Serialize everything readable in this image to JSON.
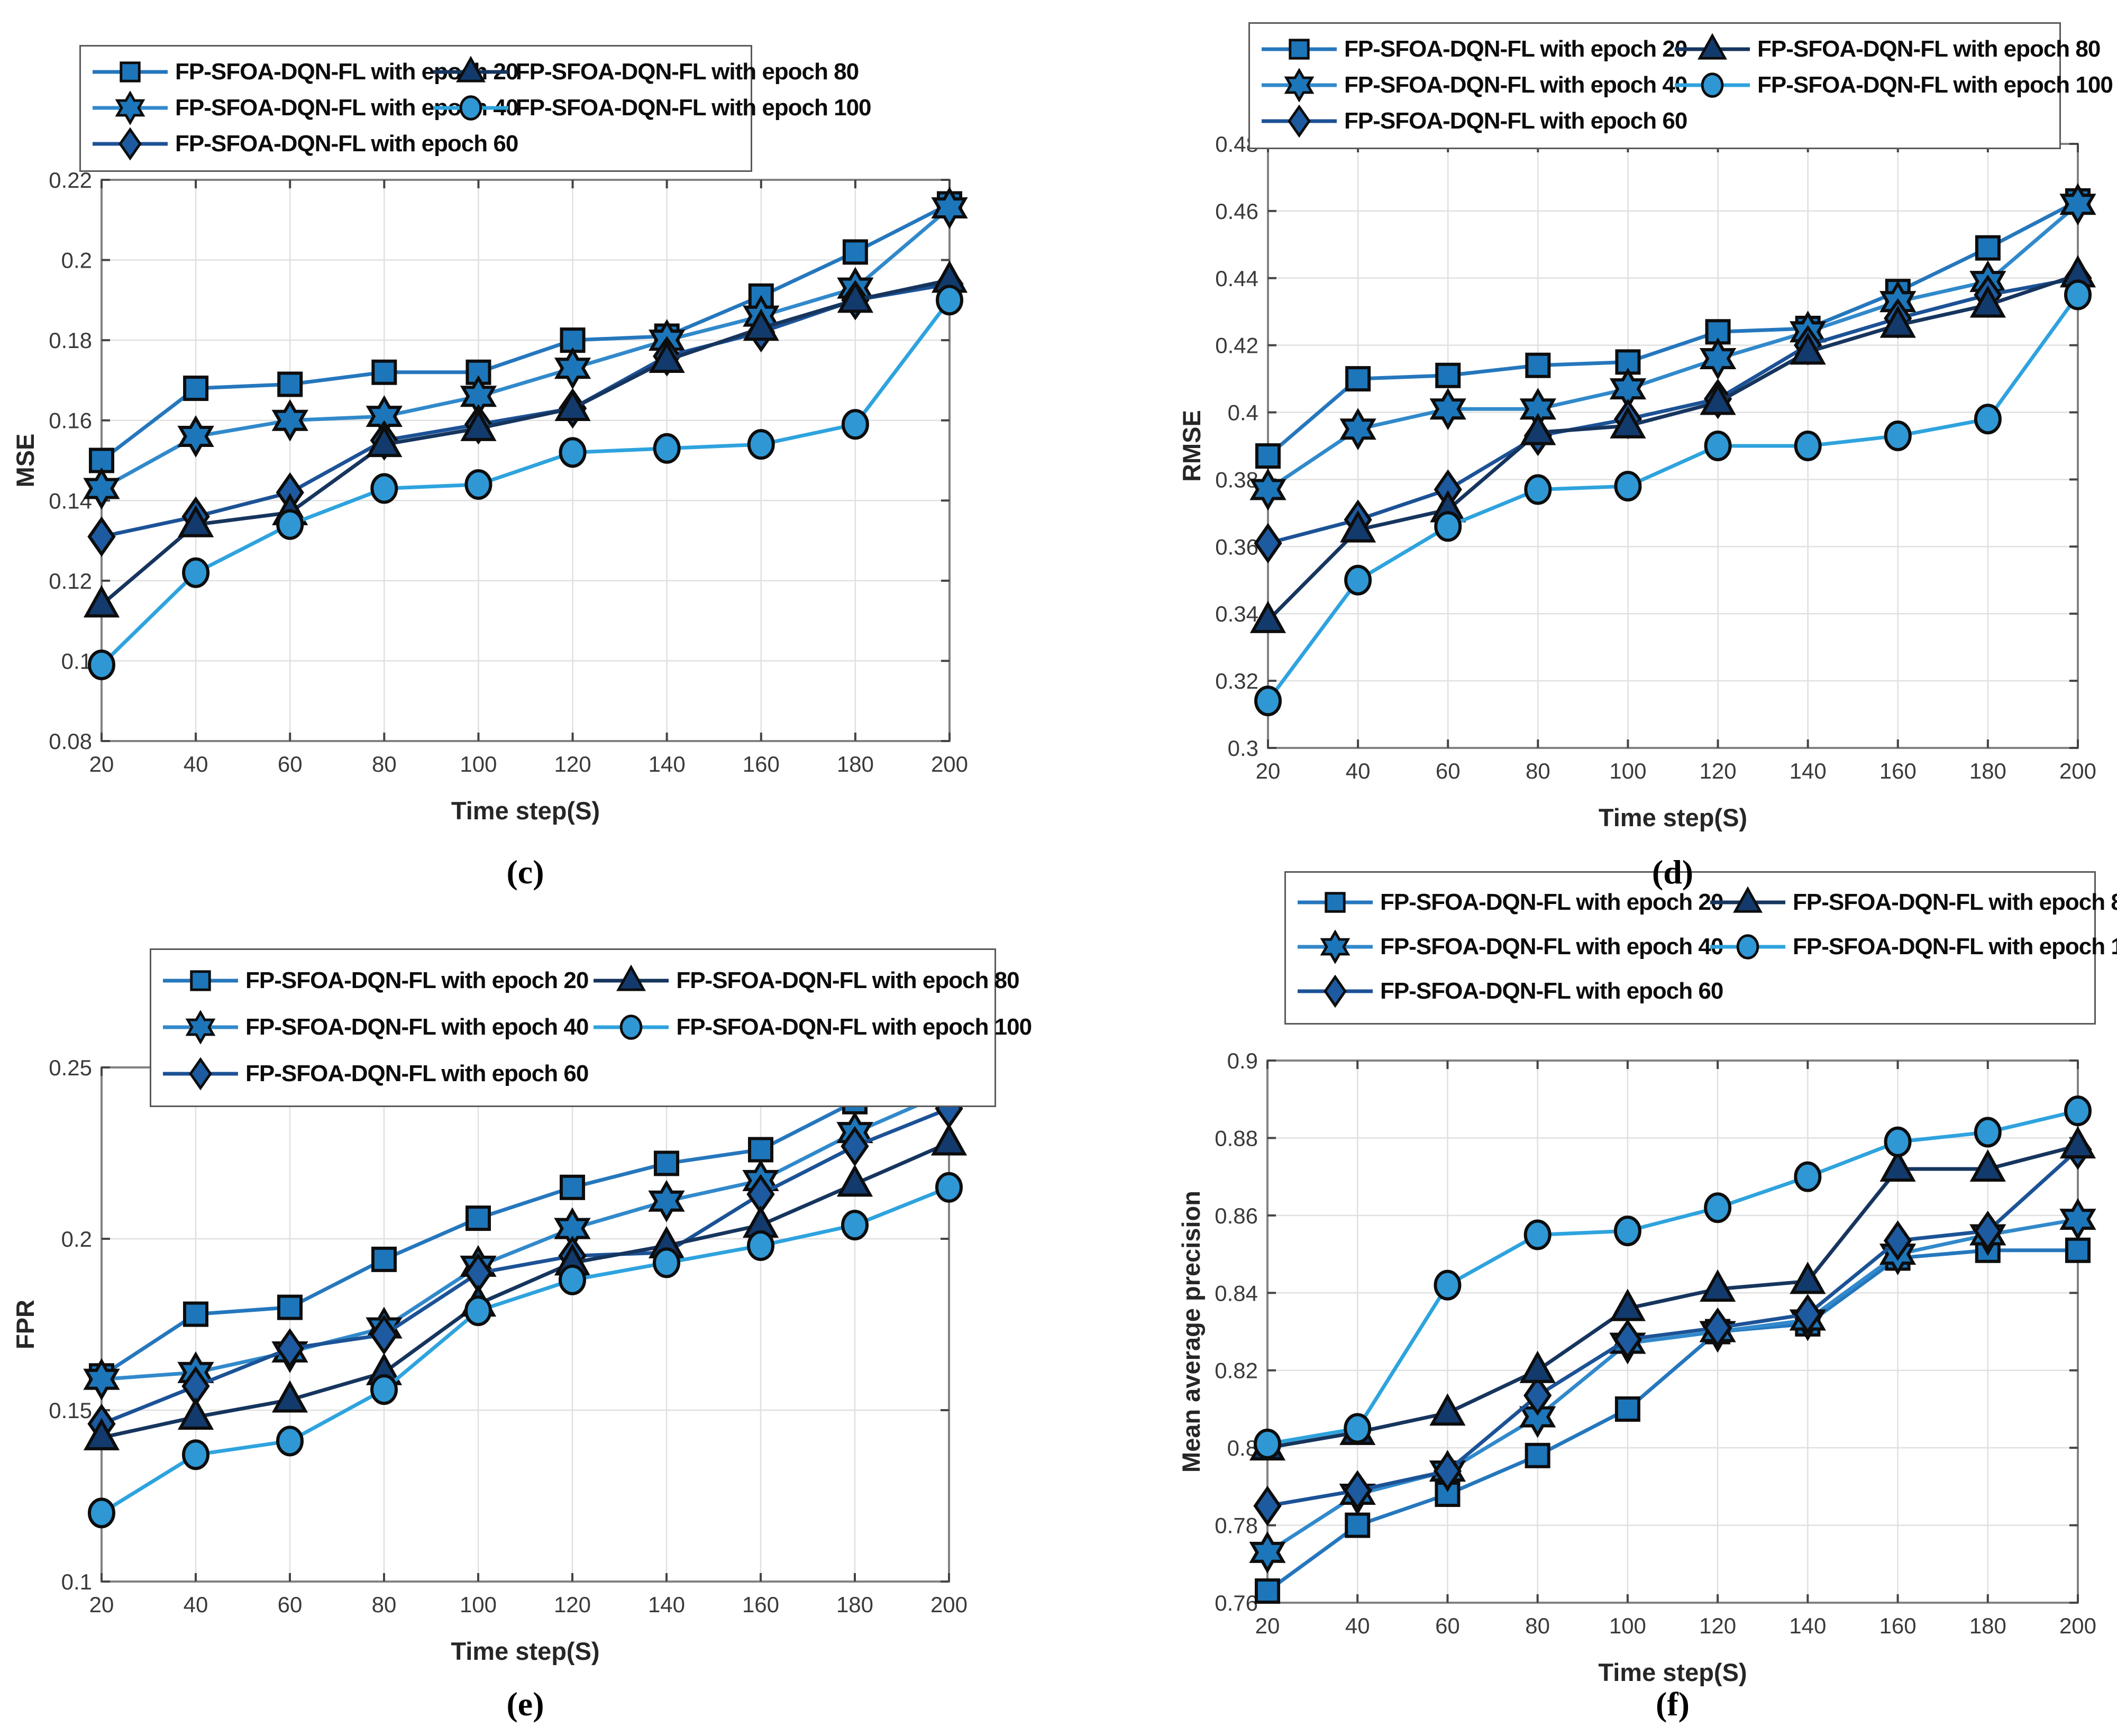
{
  "figure": {
    "series_labels": [
      "FP-SFOA-DQN-FL with epoch 20",
      "FP-SFOA-DQN-FL with epoch 40",
      "FP-SFOA-DQN-FL with epoch 60",
      "FP-SFOA-DQN-FL with epoch 80",
      "FP-SFOA-DQN-FL with epoch 100"
    ],
    "series_markers": [
      "square",
      "hexagram",
      "diamond",
      "triangle",
      "circle"
    ],
    "series_line_colors": [
      "#2577bd",
      "#3189cb",
      "#1c5296",
      "#16355e",
      "#2ea3de"
    ],
    "series_fill_colors": [
      "#1d76ba",
      "#1d76ba",
      "#1d5aa0",
      "#123a6d",
      "#2f97d4"
    ],
    "marker_outline_color": "#0d0d0d",
    "grid_color": "#e0e0e0",
    "axis_box_color": "#828282",
    "tick_color": "#444444",
    "tick_label_color": "#3a3a3a",
    "axis_label_color": "#262626"
  },
  "chart_data": [
    {
      "type": "line",
      "caption": "(c)",
      "xlabel": "Time step(S)",
      "ylabel": "MSE",
      "x": [
        20,
        40,
        60,
        80,
        100,
        120,
        140,
        160,
        180,
        200
      ],
      "xlim": [
        20,
        200
      ],
      "ylim": [
        0.08,
        0.22
      ],
      "yticks": [
        0.08,
        0.1,
        0.12,
        0.14,
        0.16,
        0.18,
        0.2,
        0.22
      ],
      "ytick_labels": [
        "0.08",
        "0.1",
        "0.12",
        "0.14",
        "0.16",
        "0.18",
        "0.2",
        "0.22"
      ],
      "xtick_labels": [
        "20",
        "40",
        "60",
        "80",
        "100",
        "120",
        "140",
        "160",
        "180",
        "200"
      ],
      "grid": true,
      "legend_position": "top-left",
      "series": [
        {
          "name": "FP-SFOA-DQN-FL with epoch 20",
          "values": [
            0.15,
            0.168,
            0.169,
            0.172,
            0.172,
            0.18,
            0.181,
            0.191,
            0.202,
            0.214
          ]
        },
        {
          "name": "FP-SFOA-DQN-FL with epoch 40",
          "values": [
            0.143,
            0.156,
            0.16,
            0.161,
            0.166,
            0.173,
            0.18,
            0.186,
            0.193,
            0.213
          ]
        },
        {
          "name": "FP-SFOA-DQN-FL with epoch 60",
          "values": [
            0.131,
            0.136,
            0.142,
            0.155,
            0.159,
            0.163,
            0.176,
            0.182,
            0.19,
            0.194
          ]
        },
        {
          "name": "FP-SFOA-DQN-FL with epoch 80",
          "values": [
            0.114,
            0.134,
            0.137,
            0.154,
            0.158,
            0.163,
            0.175,
            0.183,
            0.19,
            0.195
          ]
        },
        {
          "name": "FP-SFOA-DQN-FL with epoch 100",
          "values": [
            0.099,
            0.122,
            0.134,
            0.143,
            0.144,
            0.152,
            0.153,
            0.154,
            0.159,
            0.19
          ]
        }
      ]
    },
    {
      "type": "line",
      "caption": "(d)",
      "xlabel": "Time step(S)",
      "ylabel": "RMSE",
      "x": [
        20,
        40,
        60,
        80,
        100,
        120,
        140,
        160,
        180,
        200
      ],
      "xlim": [
        20,
        200
      ],
      "ylim": [
        0.3,
        0.48
      ],
      "yticks": [
        0.3,
        0.32,
        0.34,
        0.36,
        0.38,
        0.4,
        0.42,
        0.44,
        0.46,
        0.48
      ],
      "ytick_labels": [
        "0.3",
        "0.32",
        "0.34",
        "0.36",
        "0.38",
        "0.4",
        "0.42",
        "0.44",
        "0.46",
        "0.48"
      ],
      "xtick_labels": [
        "20",
        "40",
        "60",
        "80",
        "100",
        "120",
        "140",
        "160",
        "180",
        "200"
      ],
      "grid": true,
      "legend_position": "top-left",
      "series": [
        {
          "name": "FP-SFOA-DQN-FL with epoch 20",
          "values": [
            0.387,
            0.41,
            0.411,
            0.414,
            0.415,
            0.424,
            0.425,
            0.436,
            0.449,
            0.463
          ]
        },
        {
          "name": "FP-SFOA-DQN-FL with epoch 40",
          "values": [
            0.377,
            0.395,
            0.401,
            0.401,
            0.407,
            0.416,
            0.424,
            0.433,
            0.439,
            0.462
          ]
        },
        {
          "name": "FP-SFOA-DQN-FL with epoch 60",
          "values": [
            0.361,
            0.368,
            0.377,
            0.393,
            0.398,
            0.404,
            0.42,
            0.428,
            0.435,
            0.44
          ]
        },
        {
          "name": "FP-SFOA-DQN-FL with epoch 80",
          "values": [
            0.338,
            0.365,
            0.371,
            0.394,
            0.396,
            0.403,
            0.418,
            0.426,
            0.432,
            0.441
          ]
        },
        {
          "name": "FP-SFOA-DQN-FL with epoch 100",
          "values": [
            0.314,
            0.35,
            0.366,
            0.377,
            0.378,
            0.39,
            0.39,
            0.393,
            0.398,
            0.435
          ]
        }
      ]
    },
    {
      "type": "line",
      "caption": "(e)",
      "xlabel": "Time step(S)",
      "ylabel": "FPR",
      "x": [
        20,
        40,
        60,
        80,
        100,
        120,
        140,
        160,
        180,
        200
      ],
      "xlim": [
        20,
        200
      ],
      "ylim": [
        0.1,
        0.25
      ],
      "yticks": [
        0.1,
        0.15,
        0.2,
        0.25
      ],
      "ytick_labels": [
        "0.1",
        "0.15",
        "0.2",
        "0.25"
      ],
      "xtick_labels": [
        "20",
        "40",
        "60",
        "80",
        "100",
        "120",
        "140",
        "160",
        "180",
        "200"
      ],
      "grid": true,
      "legend_position": "top-left",
      "series": [
        {
          "name": "FP-SFOA-DQN-FL with epoch 20",
          "values": [
            0.16,
            0.178,
            0.18,
            0.194,
            0.206,
            0.215,
            0.222,
            0.226,
            0.24,
            0.246
          ]
        },
        {
          "name": "FP-SFOA-DQN-FL with epoch 40",
          "values": [
            0.159,
            0.161,
            0.167,
            0.174,
            0.192,
            0.203,
            0.211,
            0.217,
            0.231,
            0.243
          ]
        },
        {
          "name": "FP-SFOA-DQN-FL with epoch 60",
          "values": [
            0.146,
            0.157,
            0.168,
            0.172,
            0.19,
            0.195,
            0.196,
            0.213,
            0.227,
            0.238
          ]
        },
        {
          "name": "FP-SFOA-DQN-FL with epoch 80",
          "values": [
            0.142,
            0.148,
            0.153,
            0.161,
            0.181,
            0.193,
            0.198,
            0.204,
            0.216,
            0.228
          ]
        },
        {
          "name": "FP-SFOA-DQN-FL with epoch 100",
          "values": [
            0.12,
            0.137,
            0.141,
            0.156,
            0.179,
            0.188,
            0.193,
            0.198,
            0.204,
            0.215
          ]
        }
      ]
    },
    {
      "type": "line",
      "caption": "(f)",
      "xlabel": "Time step(S)",
      "ylabel": "Mean average precision",
      "x": [
        20,
        40,
        60,
        80,
        100,
        120,
        140,
        160,
        180,
        200
      ],
      "xlim": [
        20,
        200
      ],
      "ylim": [
        0.76,
        0.9
      ],
      "yticks": [
        0.76,
        0.78,
        0.8,
        0.82,
        0.84,
        0.86,
        0.88,
        0.9
      ],
      "ytick_labels": [
        "0.76",
        "0.78",
        "0.8",
        "0.82",
        "0.84",
        "0.86",
        "0.88",
        "0.9"
      ],
      "xtick_labels": [
        "20",
        "40",
        "60",
        "80",
        "100",
        "120",
        "140",
        "160",
        "180",
        "200"
      ],
      "grid": true,
      "legend_position": "top-left",
      "series": [
        {
          "name": "FP-SFOA-DQN-FL with epoch 20",
          "values": [
            0.763,
            0.78,
            0.788,
            0.798,
            0.81,
            0.83,
            0.832,
            0.849,
            0.851,
            0.851
          ]
        },
        {
          "name": "FP-SFOA-DQN-FL with epoch 40",
          "values": [
            0.773,
            0.788,
            0.794,
            0.808,
            0.827,
            0.83,
            0.833,
            0.85,
            0.855,
            0.859
          ]
        },
        {
          "name": "FP-SFOA-DQN-FL with epoch 60",
          "values": [
            0.785,
            0.789,
            0.794,
            0.8135,
            0.828,
            0.831,
            0.8345,
            0.8535,
            0.856,
            0.877
          ]
        },
        {
          "name": "FP-SFOA-DQN-FL with epoch 80",
          "values": [
            0.8,
            0.804,
            0.809,
            0.82,
            0.836,
            0.841,
            0.843,
            0.872,
            0.872,
            0.878
          ]
        },
        {
          "name": "FP-SFOA-DQN-FL with epoch 100",
          "values": [
            0.801,
            0.805,
            0.842,
            0.855,
            0.856,
            0.862,
            0.87,
            0.879,
            0.8815,
            0.887
          ]
        }
      ]
    }
  ]
}
